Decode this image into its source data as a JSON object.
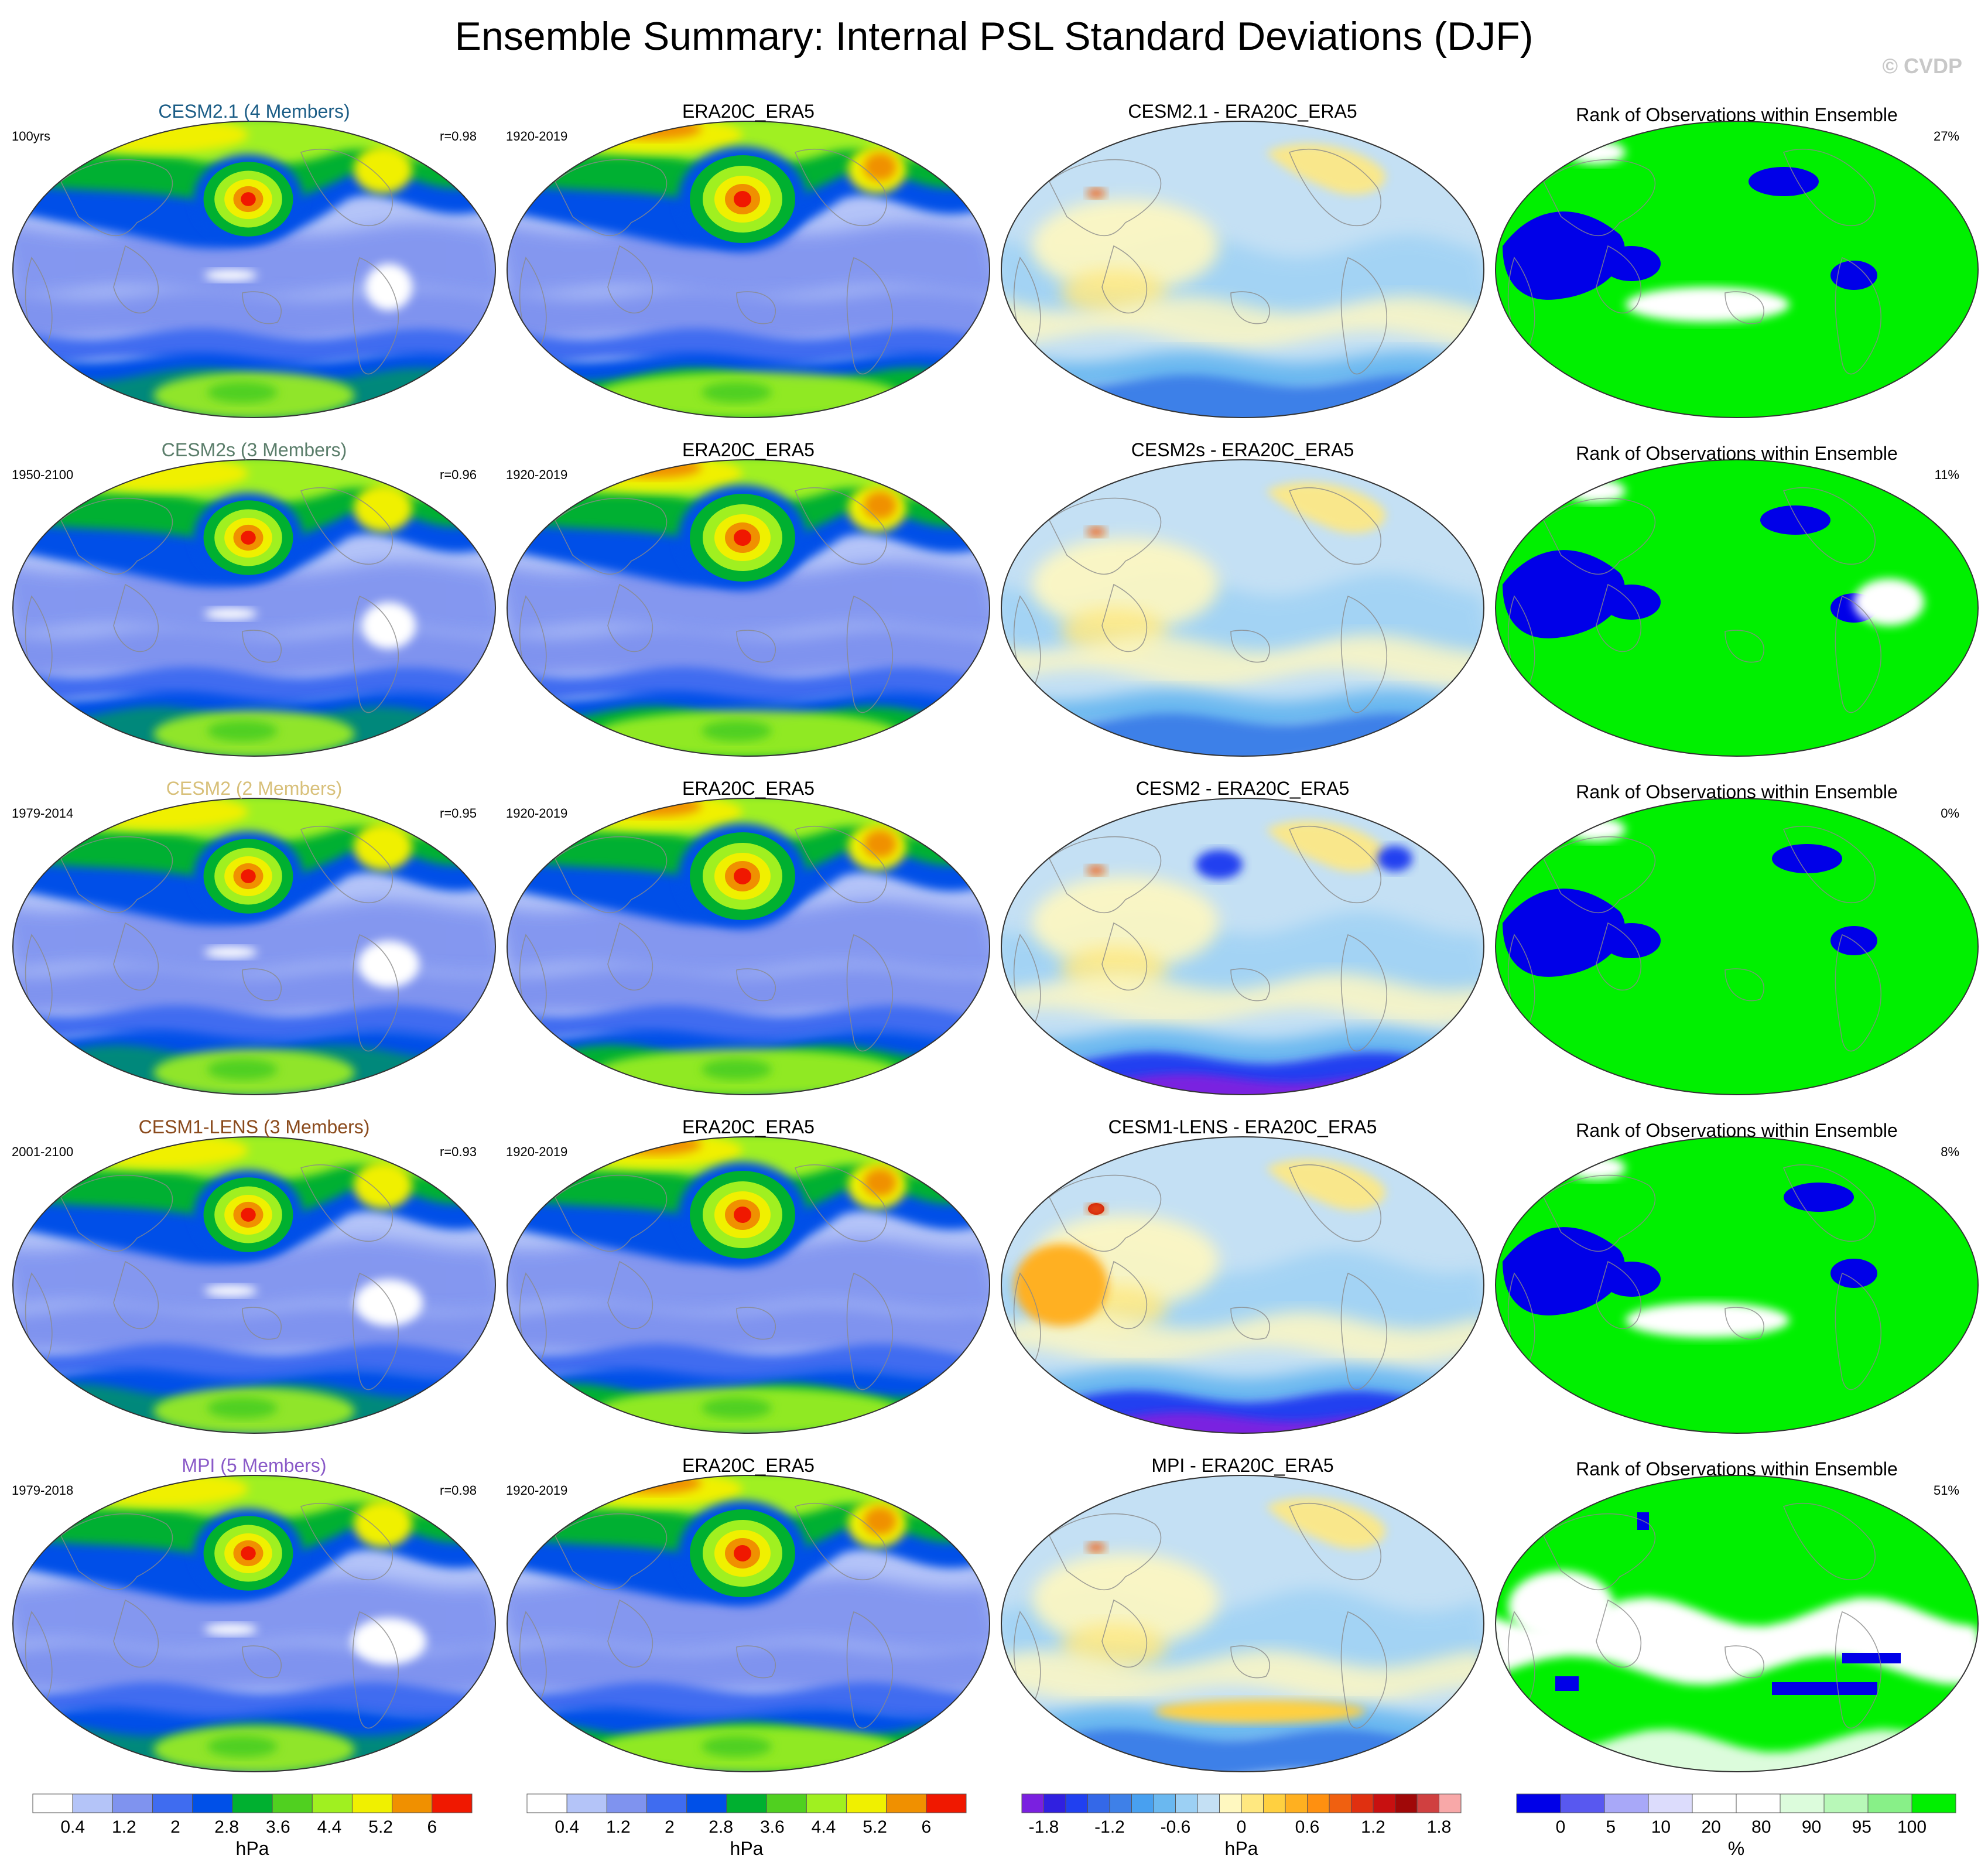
{
  "title": "Ensemble Summary: Internal PSL Standard Deviations (DJF)",
  "watermark": "© CVDP",
  "rows": [
    {
      "model_title": "CESM2.1 (4 Members)",
      "model_color": "#1b5d86",
      "model_period": "100yrs",
      "pattern_corr": "r=0.98",
      "obs_title": "ERA20C_ERA5",
      "obs_period": "1920-2019",
      "diff_title": "CESM2.1 - ERA20C_ERA5",
      "rank_title": "Rank of Observations within Ensemble",
      "rank_pct": "27%"
    },
    {
      "model_title": "CESM2s (3 Members)",
      "model_color": "#5a7d6a",
      "model_period": "1950-2100",
      "pattern_corr": "r=0.96",
      "obs_title": "ERA20C_ERA5",
      "obs_period": "1920-2019",
      "diff_title": "CESM2s - ERA20C_ERA5",
      "rank_title": "Rank of Observations within Ensemble",
      "rank_pct": "11%"
    },
    {
      "model_title": "CESM2 (2 Members)",
      "model_color": "#d8c07a",
      "model_period": "1979-2014",
      "pattern_corr": "r=0.95",
      "obs_title": "ERA20C_ERA5",
      "obs_period": "1920-2019",
      "diff_title": "CESM2 - ERA20C_ERA5",
      "rank_title": "Rank of Observations within Ensemble",
      "rank_pct": "0%"
    },
    {
      "model_title": "CESM1-LENS (3 Members)",
      "model_color": "#8a4a1c",
      "model_period": "2001-2100",
      "pattern_corr": "r=0.93",
      "obs_title": "ERA20C_ERA5",
      "obs_period": "1920-2019",
      "diff_title": "CESM1-LENS - ERA20C_ERA5",
      "rank_title": "Rank of Observations within Ensemble",
      "rank_pct": "8%"
    },
    {
      "model_title": "MPI (5 Members)",
      "model_color": "#8a5ac8",
      "model_period": "1979-2018",
      "pattern_corr": "r=0.98",
      "obs_title": "ERA20C_ERA5",
      "obs_period": "1920-2019",
      "diff_title": "MPI - ERA20C_ERA5",
      "rank_title": "Rank of Observations within Ensemble",
      "rank_pct": "51%"
    }
  ],
  "colorbars": {
    "std": {
      "colors": [
        "#ffffff",
        "#b4c4f8",
        "#7f93ef",
        "#3f6cf0",
        "#0050e8",
        "#00b030",
        "#50d020",
        "#a0f020",
        "#f0f000",
        "#f09000",
        "#f01800"
      ],
      "labels": [
        "0.4",
        "1.2",
        "2",
        "2.8",
        "3.6",
        "4.4",
        "5.2",
        "6"
      ],
      "unit": "hPa"
    },
    "diff": {
      "colors": [
        "#7a20e0",
        "#3020e0",
        "#2040f0",
        "#3468e8",
        "#3e80e8",
        "#48a0f0",
        "#6ab8f0",
        "#9cd0f4",
        "#c4e0f4",
        "#fff8c0",
        "#ffe880",
        "#ffd040",
        "#ffb020",
        "#ff9010",
        "#f06010",
        "#e03010",
        "#c81010",
        "#a00808",
        "#d04040",
        "#f8a8a8"
      ],
      "labels": [
        "-1.8",
        "-1.2",
        "-0.6",
        "0",
        "0.6",
        "1.2",
        "1.8"
      ],
      "unit": "hPa"
    },
    "rank": {
      "colors": [
        "#0000e8",
        "#5858f0",
        "#a8a8f8",
        "#dcdcfc",
        "#ffffff",
        "#ffffff",
        "#dcfcdc",
        "#b8f8b8",
        "#88f088",
        "#00f000"
      ],
      "labels": [
        "0",
        "5",
        "10",
        "20",
        "80",
        "90",
        "95",
        "100"
      ],
      "unit": "%"
    }
  }
}
